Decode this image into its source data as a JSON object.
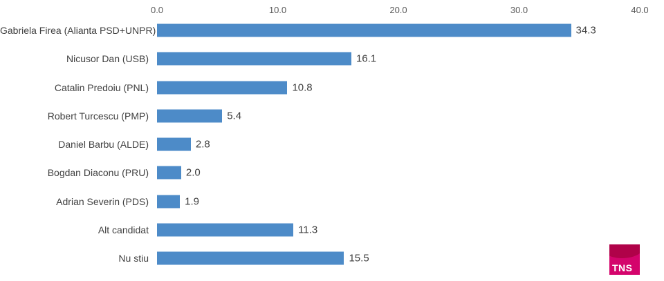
{
  "chart_data": {
    "type": "bar",
    "orientation": "horizontal",
    "title": "",
    "xlabel": "",
    "ylabel": "",
    "categories": [
      "Gabriela Firea (Alianta PSD+UNPR)",
      "Nicusor Dan (USB)",
      "Catalin Predoiu (PNL)",
      "Robert Turcescu (PMP)",
      "Daniel Barbu (ALDE)",
      "Bogdan Diaconu (PRU)",
      "Adrian Severin (PDS)",
      "Alt candidat",
      "Nu stiu"
    ],
    "values": [
      34.3,
      16.1,
      10.8,
      5.4,
      2.8,
      2.0,
      1.9,
      11.3,
      15.5
    ],
    "value_labels": [
      "34.3",
      "16.1",
      "10.8",
      "5.4",
      "2.8",
      "2.0",
      "1.9",
      "11.3",
      "15.5"
    ],
    "xlim": [
      0,
      40
    ],
    "x_tick_values": [
      0,
      10,
      20,
      30,
      40
    ],
    "x_tick_labels": [
      "0.0",
      "10.0",
      "20.0",
      "30.0",
      "40.0"
    ],
    "axis_position": "top",
    "grid": false,
    "legend": null,
    "bar_color": "#4d8bc8",
    "axis_text_color": "#595959",
    "label_text_color": "#3f3f3f"
  },
  "branding": {
    "logo_text": "TNS",
    "logo_bg_color": "#d4046c",
    "logo_shade_color": "#b00249",
    "logo_text_color": "#ffffff"
  }
}
